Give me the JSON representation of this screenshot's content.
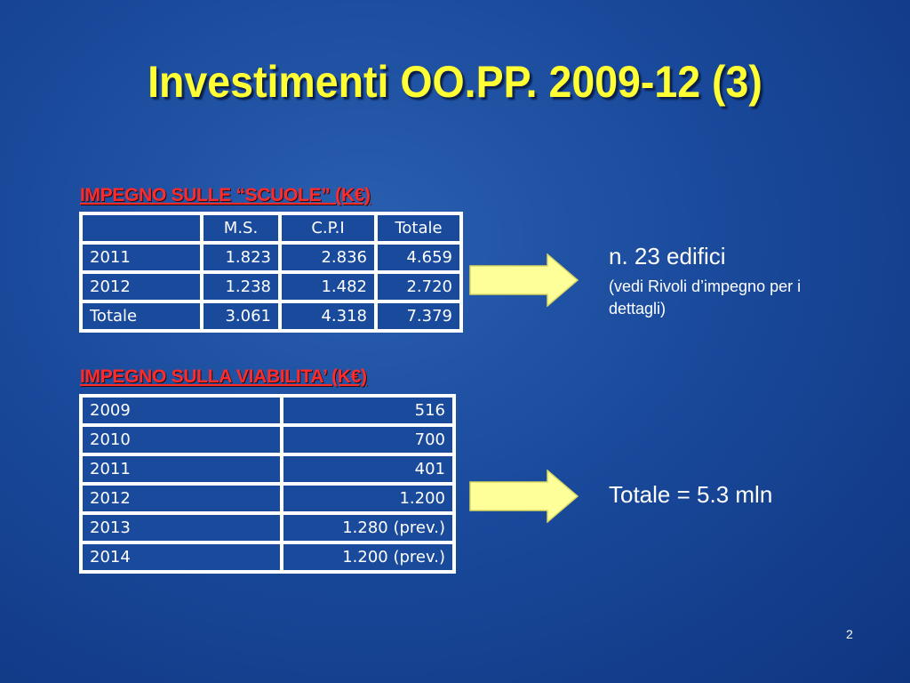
{
  "slide": {
    "title": "Investimenti OO.PP. 2009-12 (3)",
    "page_number": "2"
  },
  "table1": {
    "title": "IMPEGNO SULLE “SCUOLE” (K€)",
    "headers": [
      "",
      "M.S.",
      "C.P.I",
      "Totale"
    ],
    "rows": [
      [
        "2011",
        "1.823",
        "2.836",
        "4.659"
      ],
      [
        "2012",
        "1.238",
        "1.482",
        "2.720"
      ],
      [
        "Totale",
        "3.061",
        "4.318",
        "7.379"
      ]
    ],
    "note_main": "n. 23 edifici",
    "note_sub": "(vedi Rivoli d’impegno per i dettagli)"
  },
  "table2": {
    "title": "IMPEGNO SULLA VIABILITA’ (K€)",
    "rows": [
      [
        "2009",
        "516"
      ],
      [
        "2010",
        "700"
      ],
      [
        "2011",
        "401"
      ],
      [
        "2012",
        "1.200"
      ],
      [
        "2013",
        "1.280 (prev.)"
      ],
      [
        "2014",
        "1.200 (prev.)"
      ]
    ],
    "note": "Totale = 5.3 mln"
  },
  "colors": {
    "background": "#1a4a9c",
    "title": "#ffff33",
    "section_title": "#ff2a2a",
    "arrow_fill": "#ffff99",
    "table_border": "#ffffff"
  },
  "icons": {
    "arrow": "right-arrow-icon"
  }
}
